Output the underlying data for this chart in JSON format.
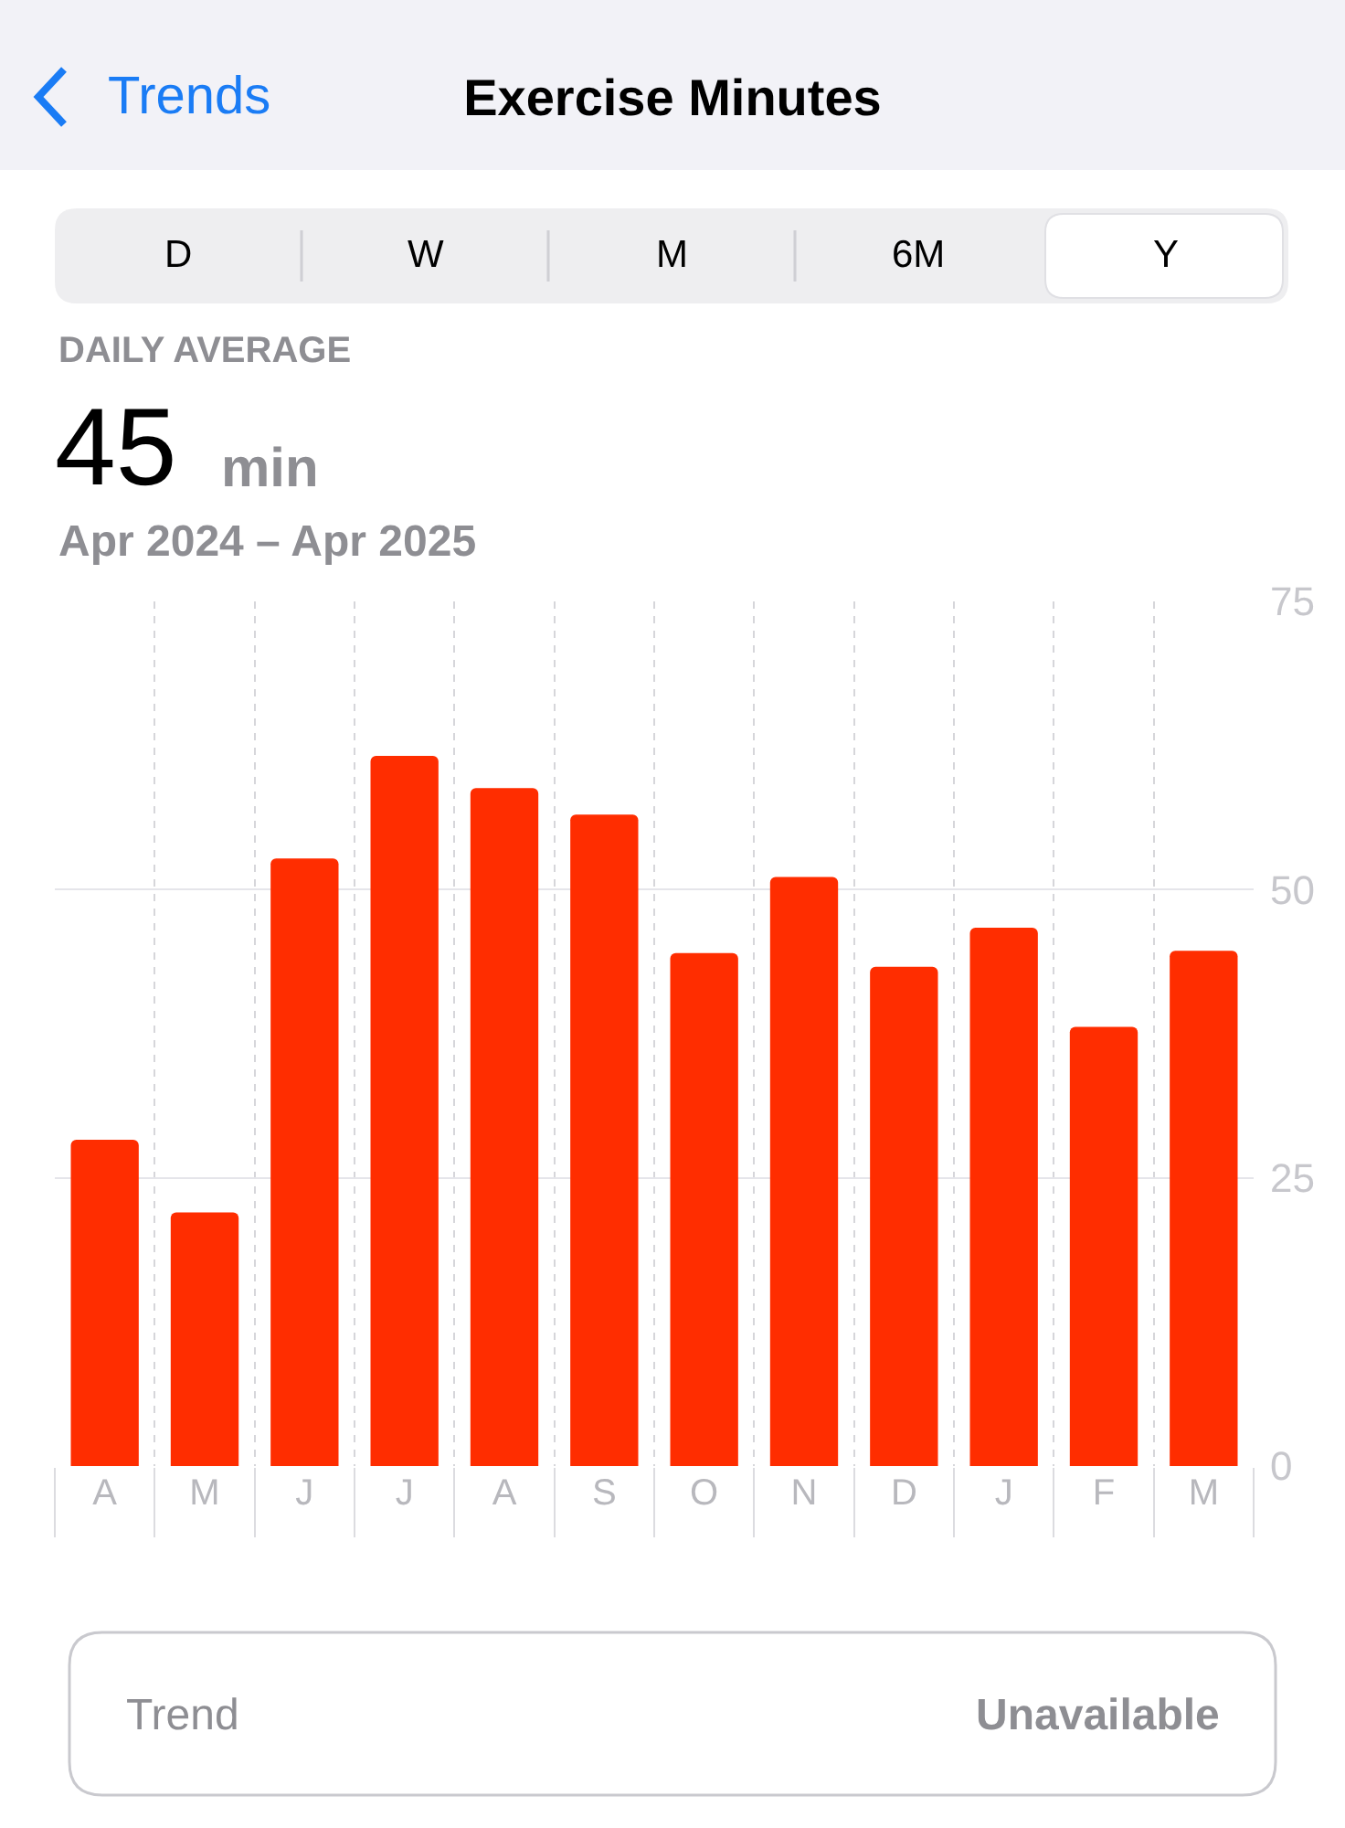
{
  "chart_data": {
    "type": "bar",
    "title": "Exercise Minutes",
    "categories": [
      "A",
      "M",
      "J",
      "J",
      "A",
      "S",
      "O",
      "N",
      "D",
      "J",
      "F",
      "M"
    ],
    "values": [
      28.3,
      22.0,
      52.7,
      61.6,
      58.8,
      56.5,
      44.5,
      51.1,
      43.3,
      46.7,
      38.1,
      44.7
    ],
    "color": "#ff2d00",
    "ylim": [
      0,
      75
    ],
    "yticks": [
      0,
      25,
      50,
      75
    ],
    "grid": true,
    "annotations": [
      "Trends",
      "D",
      "W",
      "M",
      "6M",
      "Y",
      "DAILY AVERAGE",
      "45",
      "min",
      "Apr 2024 – Apr 2025",
      "Trend",
      "Unavailable"
    ]
  }
}
